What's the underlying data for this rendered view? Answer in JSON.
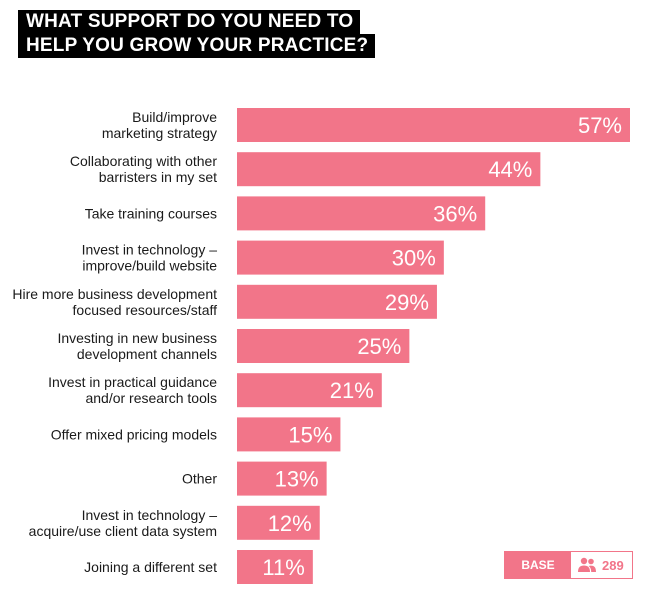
{
  "title_lines": [
    "WHAT SUPPORT DO YOU NEED TO",
    "HELP YOU GROW YOUR PRACTICE?"
  ],
  "base": {
    "label": "BASE",
    "count": "289",
    "icon": "people-icon"
  },
  "colors": {
    "bar": "#f27589",
    "value_text": "#ffffff",
    "title_bg": "#000000"
  },
  "chart_data": {
    "type": "bar",
    "orientation": "horizontal",
    "categories": [
      [
        "Build/improve",
        "marketing strategy"
      ],
      [
        "Collaborating with other",
        "barristers in my set"
      ],
      [
        "Take training courses"
      ],
      [
        "Invest in technology –",
        "improve/build website"
      ],
      [
        "Hire more business development",
        "focused resources/staff"
      ],
      [
        "Investing in new business",
        "development channels"
      ],
      [
        "Invest in practical guidance",
        "and/or research tools"
      ],
      [
        "Offer mixed pricing models"
      ],
      [
        "Other"
      ],
      [
        "Invest in technology –",
        "acquire/use client data system"
      ],
      [
        "Joining a different set"
      ]
    ],
    "values": [
      57,
      44,
      36,
      30,
      29,
      25,
      21,
      15,
      13,
      12,
      11
    ],
    "value_labels": [
      "57%",
      "44%",
      "36%",
      "30%",
      "29%",
      "25%",
      "21%",
      "15%",
      "13%",
      "12%",
      "11%"
    ],
    "unit": "%",
    "xlim": [
      0,
      57
    ],
    "grid": false,
    "legend": "none"
  }
}
